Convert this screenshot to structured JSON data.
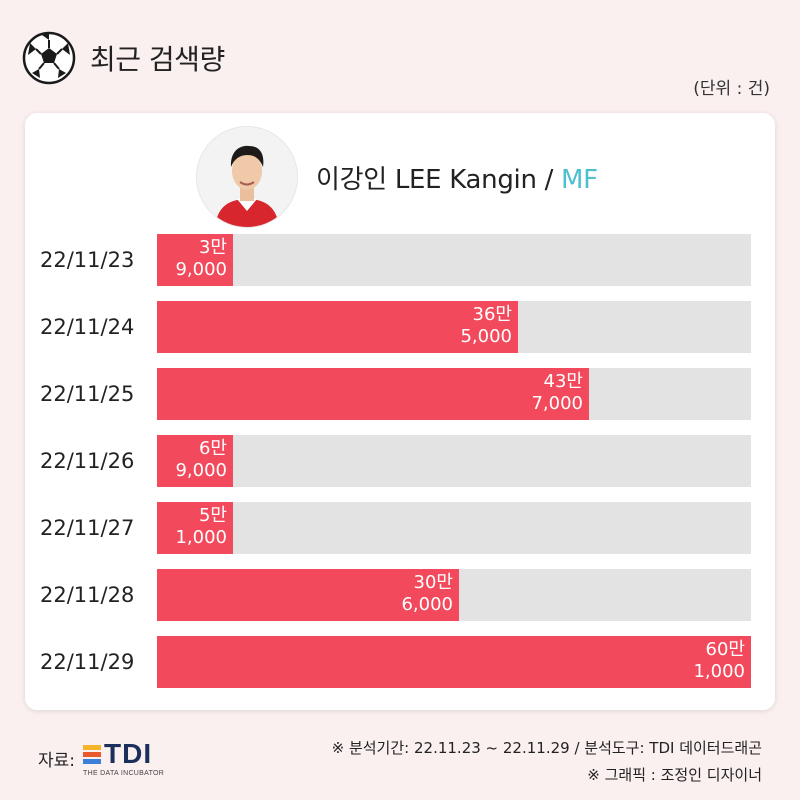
{
  "header": {
    "title": "최근 검색량",
    "unit": "(단위 : 건)",
    "icon": "soccer-ball-icon"
  },
  "player": {
    "name": "이강인 LEE Kangin / ",
    "position": "MF",
    "position_color": "#4cc0cc"
  },
  "colors": {
    "bar": "#f24a5c",
    "track": "#e3e3e3",
    "background": "#fbf0f0"
  },
  "chart_data": {
    "type": "bar",
    "orientation": "horizontal",
    "categories": [
      "22/11/23",
      "22/11/24",
      "22/11/25",
      "22/11/26",
      "22/11/27",
      "22/11/28",
      "22/11/29"
    ],
    "values": [
      39000,
      365000,
      437000,
      69000,
      51000,
      306000,
      601000
    ],
    "value_labels": [
      [
        "3만",
        "9,000"
      ],
      [
        "36만",
        "5,000"
      ],
      [
        "43만",
        "7,000"
      ],
      [
        "6만",
        "9,000"
      ],
      [
        "5만",
        "1,000"
      ],
      [
        "30만",
        "6,000"
      ],
      [
        "60만",
        "1,000"
      ]
    ],
    "xlim": [
      0,
      601000
    ],
    "grid": false,
    "title": "최근 검색량"
  },
  "footer": {
    "source_label": "자료:",
    "logo_text": "TDI",
    "logo_subtext": "THE DATA INCUBATOR",
    "logo_colors": [
      "#f5b32a",
      "#e85a2c",
      "#3d7fd6"
    ],
    "note_period": "※ 분석기간: 22.11.23 ~ 22.11.29  / 분석도구: TDI 데이터드래곤",
    "note_graphic": "※ 그래픽 : 조정인 디자이너"
  }
}
